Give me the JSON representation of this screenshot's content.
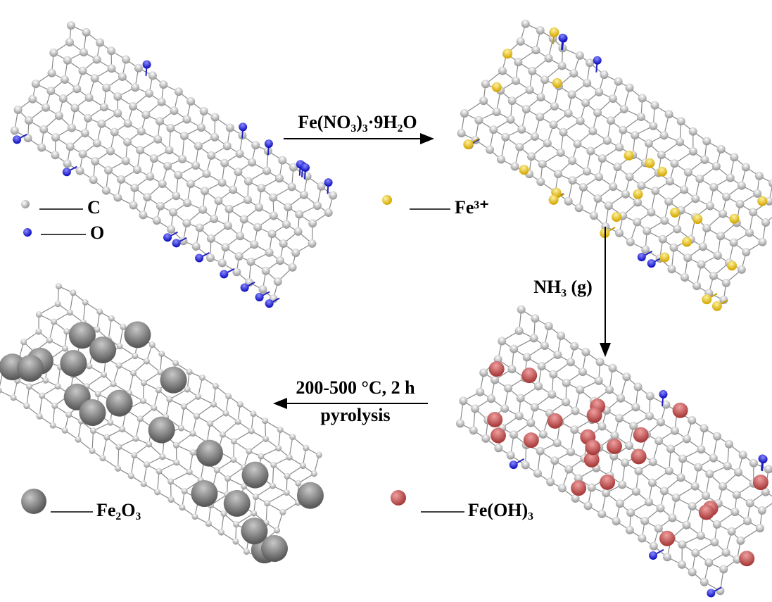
{
  "legend": {
    "carbon": "C",
    "oxygen": "O",
    "iron_ion": "Fe³⁺",
    "iron_oxide": "Fe₂O₃",
    "iron_hydroxide": "Fe(OH)₃"
  },
  "steps": {
    "impregnation": "Fe(NO₃)₃·9H₂O",
    "precipitation": "NH₃ (g)",
    "calcination": "200-500 °C, 2 h",
    "calcination_method": "pyrolysis"
  }
}
